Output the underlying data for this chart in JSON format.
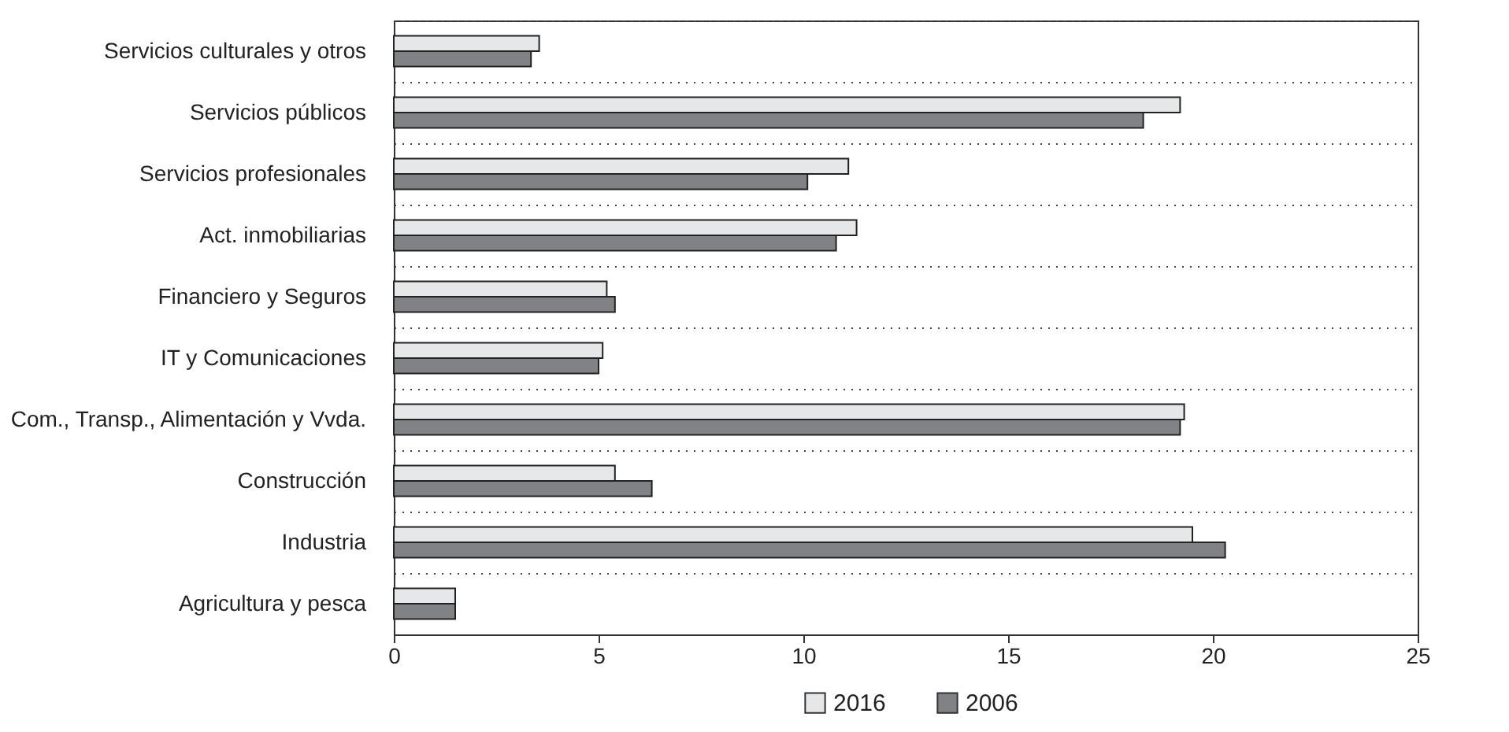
{
  "chart_data": {
    "type": "bar",
    "orientation": "horizontal",
    "categories": [
      "Servicios culturales y otros",
      "Servicios públicos",
      "Servicios profesionales",
      "Act. inmobiliarias",
      "Financiero y Seguros",
      "IT y Comunicaciones",
      "Com., Transp., Alimentación y Vvda.",
      "Construcción",
      "Industria",
      "Agricultura y pesca"
    ],
    "series": [
      {
        "name": "2016",
        "color": "#e6e7e8",
        "values": [
          3.55,
          19.2,
          11.1,
          11.3,
          5.2,
          5.1,
          19.3,
          5.4,
          19.5,
          1.5
        ]
      },
      {
        "name": "2006",
        "color": "#808285",
        "values": [
          3.35,
          18.3,
          10.1,
          10.8,
          5.4,
          5.0,
          19.2,
          6.3,
          20.3,
          1.5
        ]
      }
    ],
    "xlim": [
      0,
      25
    ],
    "xticks": [
      0,
      5,
      10,
      15,
      20,
      25
    ],
    "grid": "y",
    "legend": "bottom"
  }
}
